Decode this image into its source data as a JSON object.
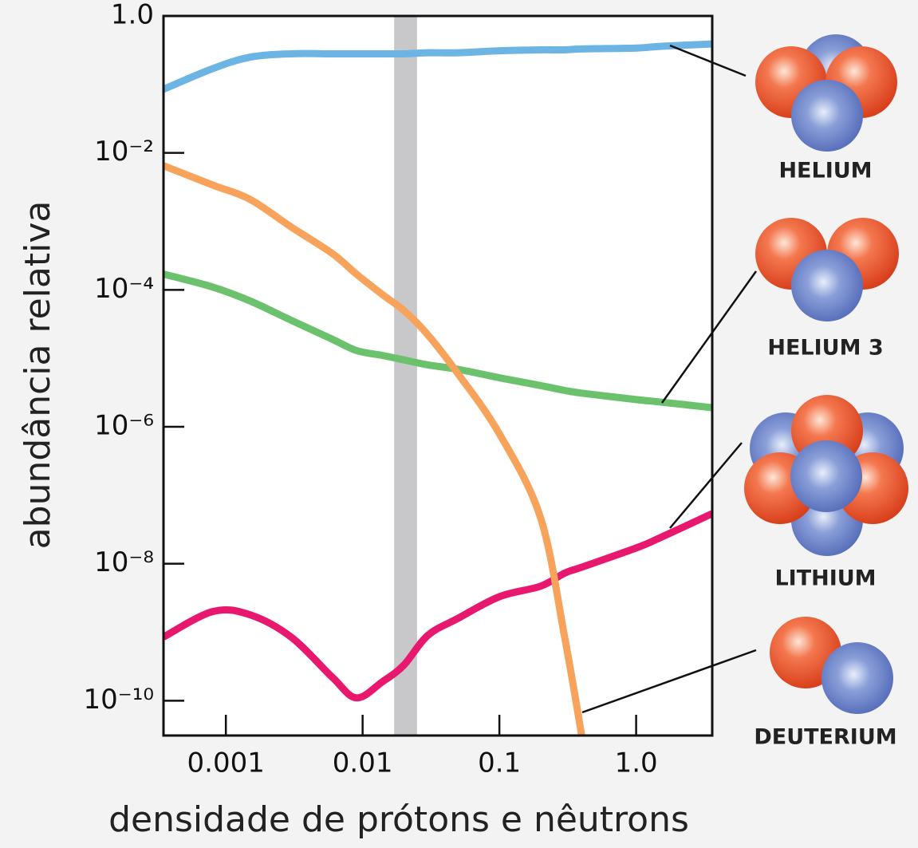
{
  "chart_data": {
    "type": "line",
    "x_label": "densidade de prótons e nêutrons",
    "y_label": "abundância relativa",
    "xlog": true,
    "ylog": true,
    "grid": false,
    "xlim": [
      0.00035,
      3.6
    ],
    "ylim": [
      3.1e-11,
      1
    ],
    "xticks": [
      0.001,
      0.01,
      0.1,
      {
        "value": 1,
        "label": "1.0"
      }
    ],
    "yticks": [
      {
        "value": 1,
        "label": "1.0"
      },
      {
        "value": 0.01,
        "label": "10⁻²"
      },
      {
        "value": 0.0001,
        "label": "10⁻⁴"
      },
      {
        "value": 1e-06,
        "label": "10⁻⁶"
      },
      {
        "value": 1e-08,
        "label": "10⁻⁸"
      },
      {
        "value": 1e-10,
        "label": "10⁻¹⁰"
      }
    ],
    "highlight_x": [
      0.017,
      0.025
    ],
    "highlight_color": "#c8c8ca",
    "x": [
      0.00035,
      0.0008,
      0.0015,
      0.003,
      0.006,
      0.009,
      0.014,
      0.02,
      0.03,
      0.05,
      0.1,
      0.2,
      0.3,
      0.4,
      1.0,
      1.5,
      3.6
    ],
    "series": [
      {
        "name": "HELIUM",
        "color": "#6cb4e4",
        "values": [
          0.085,
          0.17,
          0.25,
          0.28,
          0.28,
          0.28,
          0.28,
          0.28,
          0.29,
          0.29,
          0.31,
          0.32,
          0.32,
          0.33,
          0.34,
          0.36,
          0.39
        ]
      },
      {
        "name": "HELIUM 3",
        "color": "#6cc26c",
        "values": [
          0.00017,
          0.00011,
          6.9e-05,
          3.6e-05,
          1.9e-05,
          1.3e-05,
          1.1e-05,
          9.5e-06,
          8e-06,
          6.9e-06,
          5.2e-06,
          4e-06,
          3.4e-06,
          3.1e-06,
          2.5e-06,
          2.3e-06,
          1.9e-06
        ]
      },
      {
        "name": "LITHIUM",
        "color": "#e8186e",
        "values": [
          8.5e-10,
          2e-09,
          1.8e-09,
          8.5e-10,
          2.2e-10,
          1.1e-10,
          1.9e-10,
          3.3e-10,
          9e-10,
          1.6e-09,
          3.3e-09,
          4.7e-09,
          7.3e-09,
          8.9e-09,
          1.7e-08,
          2.4e-08,
          5.4e-08
        ]
      },
      {
        "name": "DEUTERIUM",
        "color": "#f7a35c",
        "values": [
          0.0065,
          0.0034,
          0.0021,
          0.00083,
          0.00034,
          0.00017,
          8.5e-05,
          5e-05,
          2.2e-05,
          5.9e-06,
          7.9e-07,
          4.7e-08,
          8.5e-10,
          3.1e-11,
          null,
          null,
          null
        ]
      }
    ]
  }
}
